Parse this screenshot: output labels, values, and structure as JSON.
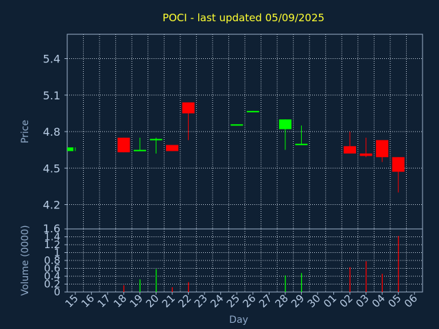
{
  "chart_data": [
    {
      "type": "candlestick",
      "title": "POCI - last updated 05/09/2025",
      "ylabel": "Price",
      "ylim": [
        4.0,
        5.6
      ],
      "yticks": [
        "4.2",
        "4.5",
        "4.8",
        "5.1",
        "5.4"
      ],
      "colors": {
        "up": "#00ff00",
        "down": "#ff0000"
      },
      "grid": true,
      "candles": [
        {
          "day": "15",
          "open": 4.64,
          "close": 4.67,
          "high": 4.67,
          "low": 4.64
        },
        {
          "day": "18",
          "open": 4.75,
          "close": 4.63,
          "high": 4.75,
          "low": 4.63
        },
        {
          "day": "19",
          "open": 4.64,
          "close": 4.65,
          "high": 4.75,
          "low": 4.64
        },
        {
          "day": "20",
          "open": 4.73,
          "close": 4.74,
          "high": 4.75,
          "low": 4.62
        },
        {
          "day": "21",
          "open": 4.69,
          "close": 4.64,
          "high": 4.69,
          "low": 4.64
        },
        {
          "day": "22",
          "open": 5.04,
          "close": 4.95,
          "high": 5.04,
          "low": 4.73
        },
        {
          "day": "25",
          "open": 4.85,
          "close": 4.86,
          "high": 4.86,
          "low": 4.85
        },
        {
          "day": "26",
          "open": 4.96,
          "close": 4.97,
          "high": 4.97,
          "low": 4.96
        },
        {
          "day": "28",
          "open": 4.82,
          "close": 4.9,
          "high": 4.9,
          "low": 4.65
        },
        {
          "day": "29",
          "open": 4.69,
          "close": 4.7,
          "high": 4.85,
          "low": 4.69
        },
        {
          "day": "02",
          "open": 4.68,
          "close": 4.62,
          "high": 4.8,
          "low": 4.62
        },
        {
          "day": "03",
          "open": 4.62,
          "close": 4.6,
          "high": 4.75,
          "low": 4.59
        },
        {
          "day": "04",
          "open": 4.73,
          "close": 4.59,
          "high": 4.73,
          "low": 4.55
        },
        {
          "day": "05",
          "open": 4.59,
          "close": 4.47,
          "high": 4.59,
          "low": 4.3
        }
      ]
    },
    {
      "type": "bar",
      "ylabel": "Volume (0000)",
      "xlabel": "Day",
      "ylim": [
        0,
        1.6
      ],
      "yticks": [
        "0",
        "0.2",
        "0.4",
        "0.6",
        "0.8",
        "1",
        "1.2",
        "1.4",
        "1.6"
      ],
      "categories": [
        "15",
        "16",
        "17",
        "18",
        "19",
        "20",
        "21",
        "22",
        "23",
        "24",
        "25",
        "26",
        "27",
        "28",
        "29",
        "30",
        "01",
        "02",
        "03",
        "04",
        "05",
        "06"
      ],
      "volumes": [
        {
          "day": "18",
          "value": 0.17,
          "direction": "down"
        },
        {
          "day": "19",
          "value": 0.32,
          "direction": "up"
        },
        {
          "day": "20",
          "value": 0.58,
          "direction": "up"
        },
        {
          "day": "21",
          "value": 0.12,
          "direction": "down"
        },
        {
          "day": "22",
          "value": 0.25,
          "direction": "down"
        },
        {
          "day": "28",
          "value": 0.42,
          "direction": "up"
        },
        {
          "day": "29",
          "value": 0.48,
          "direction": "up"
        },
        {
          "day": "02",
          "value": 0.63,
          "direction": "down"
        },
        {
          "day": "03",
          "value": 0.78,
          "direction": "down"
        },
        {
          "day": "04",
          "value": 0.46,
          "direction": "down"
        },
        {
          "day": "05",
          "value": 1.42,
          "direction": "down"
        }
      ]
    }
  ]
}
